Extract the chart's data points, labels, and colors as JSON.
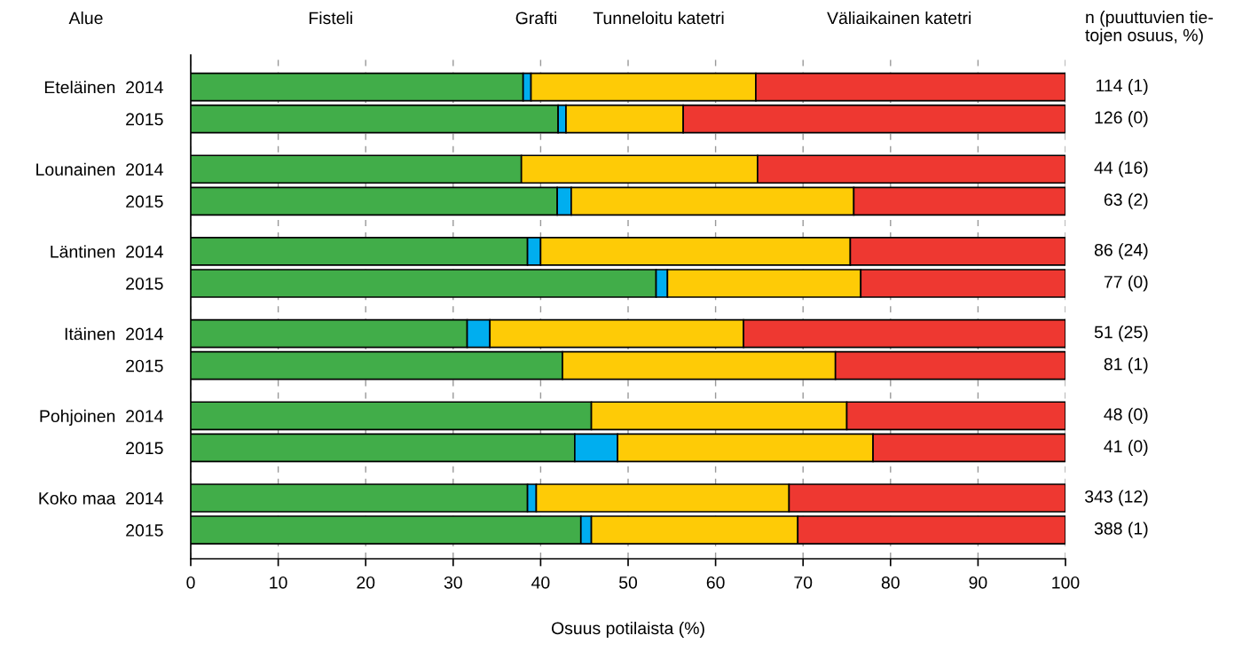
{
  "chart_data": {
    "type": "bar",
    "orientation": "horizontal",
    "stacked": true,
    "xlabel": "Osuus potilaista (%)",
    "categories": [
      "Eteläinen  2014",
      "2015",
      "Lounainen  2014",
      "2015",
      "Läntinen  2014",
      "2015",
      "Itäinen  2014",
      "2015",
      "Pohjoinen  2014",
      "2015",
      "Koko maa  2014",
      "2015"
    ],
    "series": [
      {
        "name": "Fisteli",
        "color": "#41ad49",
        "values": [
          38.0,
          42.0,
          37.8,
          41.9,
          38.5,
          53.2,
          31.6,
          42.5,
          45.8,
          43.9,
          38.5,
          44.6
        ]
      },
      {
        "name": "Grafti",
        "color": "#00aeef",
        "values": [
          0.9,
          0.9,
          0,
          1.6,
          1.5,
          1.3,
          2.6,
          0,
          0,
          4.9,
          1.0,
          1.2
        ]
      },
      {
        "name": "Tunneloitu katetri",
        "color": "#fecb06",
        "values": [
          25.7,
          13.4,
          27.0,
          32.3,
          35.4,
          22.1,
          29.0,
          31.2,
          29.2,
          29.2,
          28.9,
          23.6
        ]
      },
      {
        "name": "Väliaikainen katetri",
        "color": "#ee3831",
        "values": [
          35.4,
          43.7,
          35.2,
          24.2,
          24.6,
          23.4,
          36.8,
          26.3,
          25.0,
          22.0,
          31.6,
          30.6
        ]
      }
    ],
    "xlim": [
      0,
      100
    ],
    "xticks": [
      0,
      10,
      20,
      30,
      40,
      50,
      60,
      70,
      80,
      90,
      100
    ],
    "grid": "x",
    "legend": "top",
    "annotations": [
      "Alue",
      "n (puuttuvien tie-\ntojen osuus, %)",
      "114 (1)",
      "126 (0)",
      "44 (16)",
      "63 (2)",
      "86 (24)",
      "77 (0)",
      "51 (25)",
      "81 (1)",
      "48 (0)",
      "41 (0)",
      "343 (12)",
      "388 (1)"
    ]
  }
}
